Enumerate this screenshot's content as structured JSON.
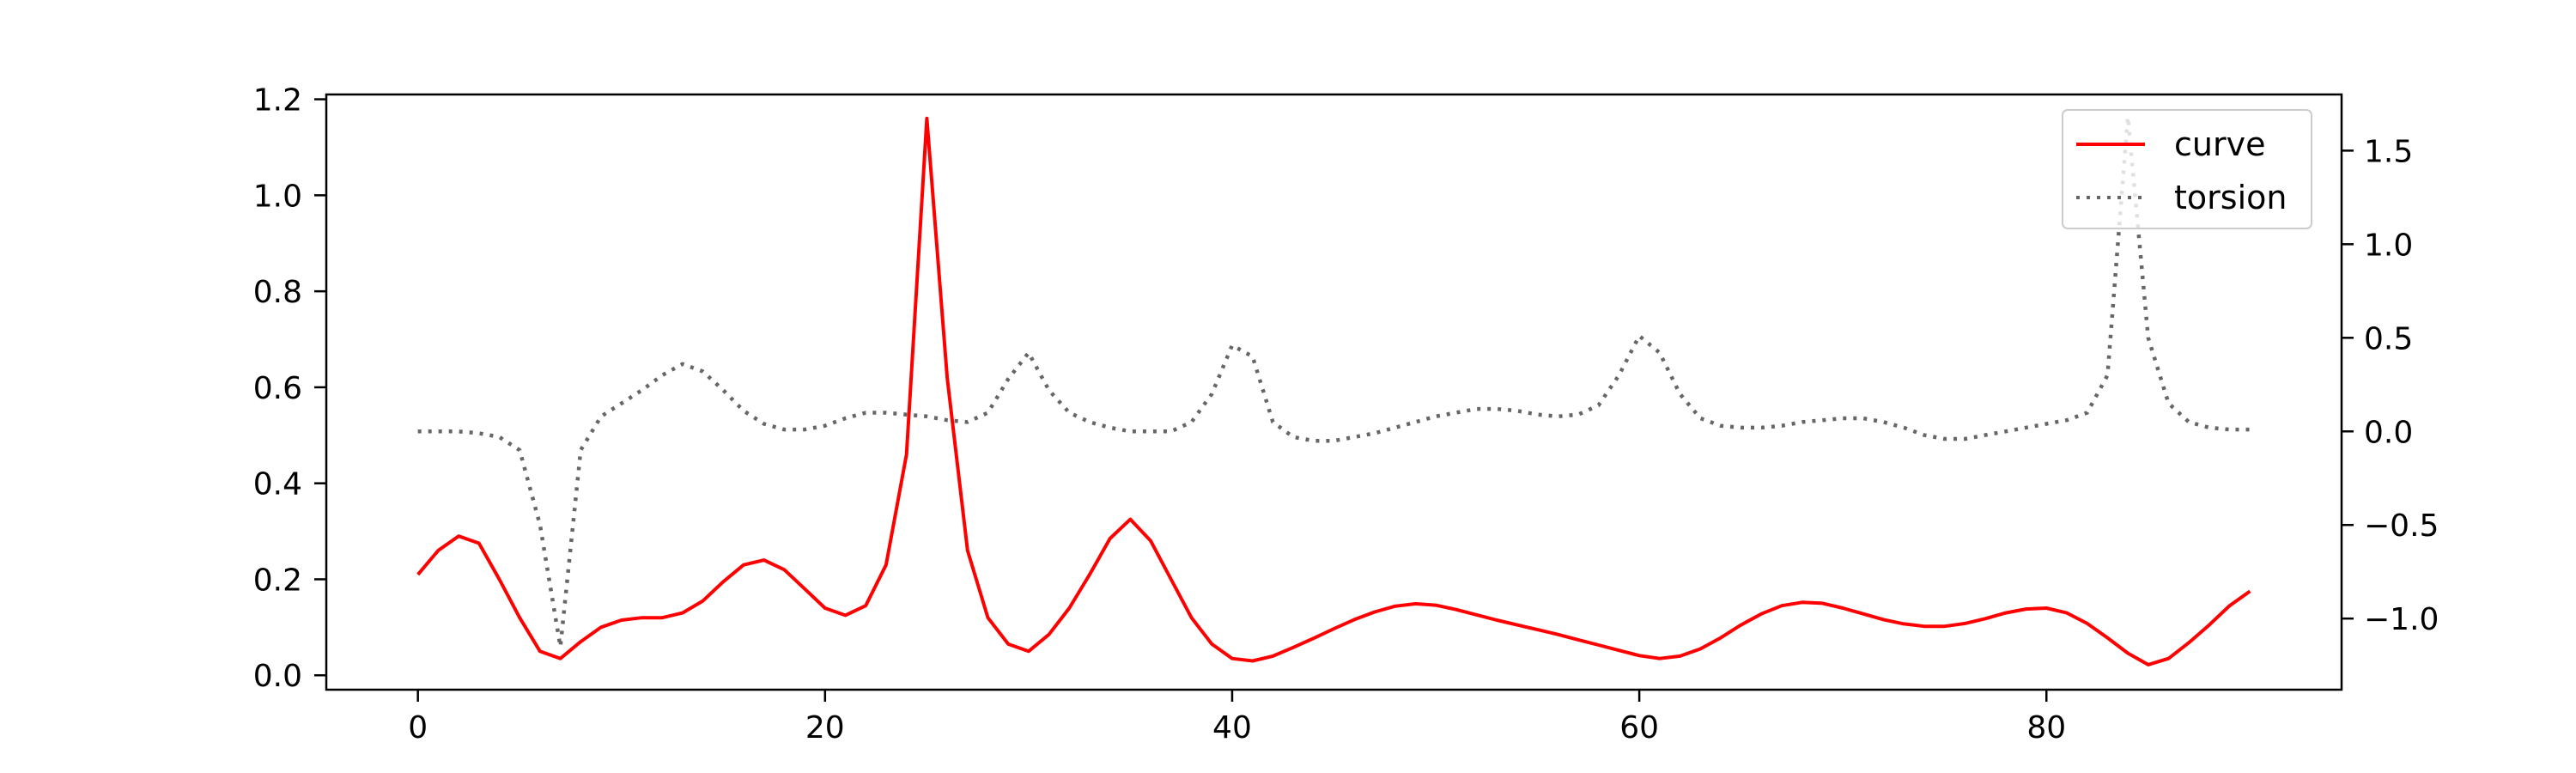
{
  "chart_data": {
    "type": "line",
    "title": "",
    "xlabel": "",
    "ylabel": "",
    "y2label": "",
    "xlim": [
      -4.5,
      94.5
    ],
    "ylim": [
      -0.03,
      1.21
    ],
    "y2lim": [
      -1.38,
      1.8
    ],
    "x_ticks": [
      0,
      20,
      40,
      60,
      80
    ],
    "y_ticks": [
      0.0,
      0.2,
      0.4,
      0.6,
      0.8,
      1.0,
      1.2
    ],
    "y_tick_labels": [
      "0.0",
      "0.2",
      "0.4",
      "0.6",
      "0.8",
      "1.0",
      "1.2"
    ],
    "y2_ticks": [
      -1.0,
      -0.5,
      0.0,
      0.5,
      1.0,
      1.5
    ],
    "y2_tick_labels": [
      "−1.0",
      "−0.5",
      "0.0",
      "0.5",
      "1.0",
      "1.5"
    ],
    "grid": false,
    "legend_position": "top-right",
    "series": [
      {
        "name": "curve",
        "axis": "left",
        "color": "#ff0000",
        "style": "solid",
        "x": [
          0,
          1,
          2,
          3,
          4,
          5,
          6,
          7,
          8,
          9,
          10,
          11,
          12,
          13,
          14,
          15,
          16,
          17,
          18,
          19,
          20,
          21,
          22,
          23,
          24,
          25,
          26,
          27,
          28,
          29,
          30,
          31,
          32,
          33,
          34,
          35,
          36,
          37,
          38,
          39,
          40,
          41,
          42,
          43,
          44,
          45,
          46,
          47,
          48,
          49,
          50,
          51,
          52,
          53,
          54,
          55,
          56,
          57,
          58,
          59,
          60,
          61,
          62,
          63,
          64,
          65,
          66,
          67,
          68,
          69,
          70,
          71,
          72,
          73,
          74,
          75,
          76,
          77,
          78,
          79,
          80,
          81,
          82,
          83,
          84,
          85,
          86,
          87,
          88,
          89,
          90
        ],
        "y": [
          0.21,
          0.26,
          0.29,
          0.275,
          0.2,
          0.12,
          0.05,
          0.035,
          0.07,
          0.1,
          0.115,
          0.12,
          0.12,
          0.13,
          0.155,
          0.195,
          0.23,
          0.24,
          0.22,
          0.18,
          0.14,
          0.125,
          0.145,
          0.23,
          0.46,
          1.16,
          0.62,
          0.26,
          0.12,
          0.065,
          0.05,
          0.085,
          0.14,
          0.21,
          0.285,
          0.325,
          0.28,
          0.2,
          0.12,
          0.065,
          0.035,
          0.03,
          0.04,
          0.058,
          0.077,
          0.097,
          0.116,
          0.132,
          0.144,
          0.149,
          0.146,
          0.137,
          0.126,
          0.115,
          0.105,
          0.095,
          0.085,
          0.074,
          0.063,
          0.052,
          0.041,
          0.035,
          0.04,
          0.055,
          0.078,
          0.105,
          0.128,
          0.145,
          0.152,
          0.15,
          0.14,
          0.128,
          0.116,
          0.107,
          0.102,
          0.102,
          0.108,
          0.118,
          0.13,
          0.138,
          0.14,
          0.13,
          0.108,
          0.078,
          0.046,
          0.022,
          0.035,
          0.068,
          0.105,
          0.145,
          0.175
        ]
      },
      {
        "name": "torsion",
        "axis": "right",
        "color": "#666666",
        "style": "dotted",
        "x": [
          0,
          1,
          2,
          3,
          4,
          5,
          6,
          7,
          8,
          9,
          10,
          11,
          12,
          13,
          14,
          15,
          16,
          17,
          18,
          19,
          20,
          21,
          22,
          23,
          24,
          25,
          26,
          27,
          28,
          29,
          30,
          31,
          32,
          33,
          34,
          35,
          36,
          37,
          38,
          39,
          40,
          41,
          42,
          43,
          44,
          45,
          46,
          47,
          48,
          49,
          50,
          51,
          52,
          53,
          54,
          55,
          56,
          57,
          58,
          59,
          60,
          61,
          62,
          63,
          64,
          65,
          66,
          67,
          68,
          69,
          70,
          71,
          72,
          73,
          74,
          75,
          76,
          77,
          78,
          79,
          80,
          81,
          82,
          83,
          84,
          85,
          86,
          87,
          88,
          89,
          90
        ],
        "y": [
          0.0,
          0.0,
          0.0,
          -0.01,
          -0.03,
          -0.1,
          -0.5,
          -1.15,
          -0.1,
          0.08,
          0.15,
          0.22,
          0.3,
          0.36,
          0.32,
          0.22,
          0.11,
          0.04,
          0.01,
          0.01,
          0.03,
          0.07,
          0.1,
          0.1,
          0.09,
          0.08,
          0.06,
          0.05,
          0.1,
          0.28,
          0.42,
          0.22,
          0.1,
          0.05,
          0.02,
          0.0,
          0.0,
          0.0,
          0.05,
          0.2,
          0.46,
          0.4,
          0.05,
          -0.03,
          -0.05,
          -0.05,
          -0.03,
          -0.01,
          0.02,
          0.05,
          0.08,
          0.1,
          0.12,
          0.12,
          0.11,
          0.09,
          0.08,
          0.09,
          0.14,
          0.3,
          0.51,
          0.42,
          0.2,
          0.07,
          0.03,
          0.02,
          0.02,
          0.03,
          0.05,
          0.06,
          0.07,
          0.07,
          0.05,
          0.02,
          -0.02,
          -0.04,
          -0.04,
          -0.02,
          0.0,
          0.02,
          0.04,
          0.06,
          0.1,
          0.3,
          1.68,
          0.5,
          0.15,
          0.05,
          0.02,
          0.01,
          0.01
        ]
      }
    ]
  }
}
